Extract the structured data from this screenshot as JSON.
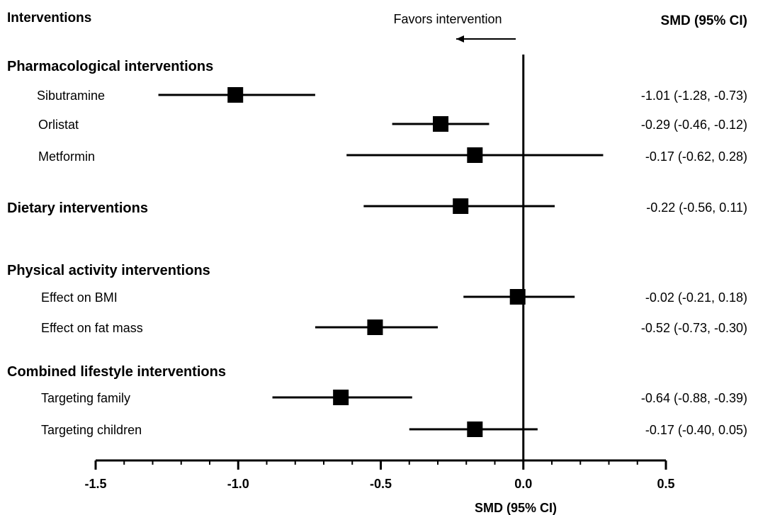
{
  "header": {
    "col_interventions": "Interventions",
    "favors": "Favors intervention",
    "col_smd": "SMD (95% CI)"
  },
  "colors": {
    "ink": "#000000",
    "background": "#ffffff"
  },
  "chart_data": {
    "type": "forest",
    "xlabel": "SMD (95% CI)",
    "xlim": [
      -1.5,
      0.5
    ],
    "x_major_ticks": [
      -1.5,
      -1.0,
      -0.5,
      0.0,
      0.5
    ],
    "x_tick_labels": [
      "-1.5",
      "-1.0",
      "-0.5",
      "0.0",
      "0.5"
    ],
    "x_minor_step": 0.1,
    "reference_line": 0.0,
    "grid": false,
    "groups": [
      {
        "name": "Pharmacological interventions",
        "rows": [
          {
            "label": "Sibutramine",
            "estimate": -1.01,
            "lower": -1.28,
            "upper": -0.73,
            "ci_text": "-1.01 (-1.28, -0.73)"
          },
          {
            "label": "Orlistat",
            "estimate": -0.29,
            "lower": -0.46,
            "upper": -0.12,
            "ci_text": "-0.29 (-0.46, -0.12)"
          },
          {
            "label": "Metformin",
            "estimate": -0.17,
            "lower": -0.62,
            "upper": 0.28,
            "ci_text": "-0.17 (-0.62, 0.28)"
          }
        ]
      },
      {
        "name": "Dietary interventions",
        "estimate": -0.22,
        "lower": -0.56,
        "upper": 0.11,
        "ci_text": "-0.22 (-0.56, 0.11)",
        "rows": []
      },
      {
        "name": "Physical activity interventions",
        "rows": [
          {
            "label": "Effect on BMI",
            "estimate": -0.02,
            "lower": -0.21,
            "upper": 0.18,
            "ci_text": "-0.02 (-0.21, 0.18)"
          },
          {
            "label": "Effect on fat mass",
            "estimate": -0.52,
            "lower": -0.73,
            "upper": -0.3,
            "ci_text": "-0.52 (-0.73, -0.30)"
          }
        ]
      },
      {
        "name": "Combined lifestyle interventions",
        "rows": [
          {
            "label": "Targeting family",
            "estimate": -0.64,
            "lower": -0.88,
            "upper": -0.39,
            "ci_text": "-0.64 (-0.88, -0.39)"
          },
          {
            "label": "Targeting children",
            "estimate": -0.17,
            "lower": -0.4,
            "upper": 0.05,
            "ci_text": "-0.17 (-0.40, 0.05)"
          }
        ]
      }
    ]
  }
}
